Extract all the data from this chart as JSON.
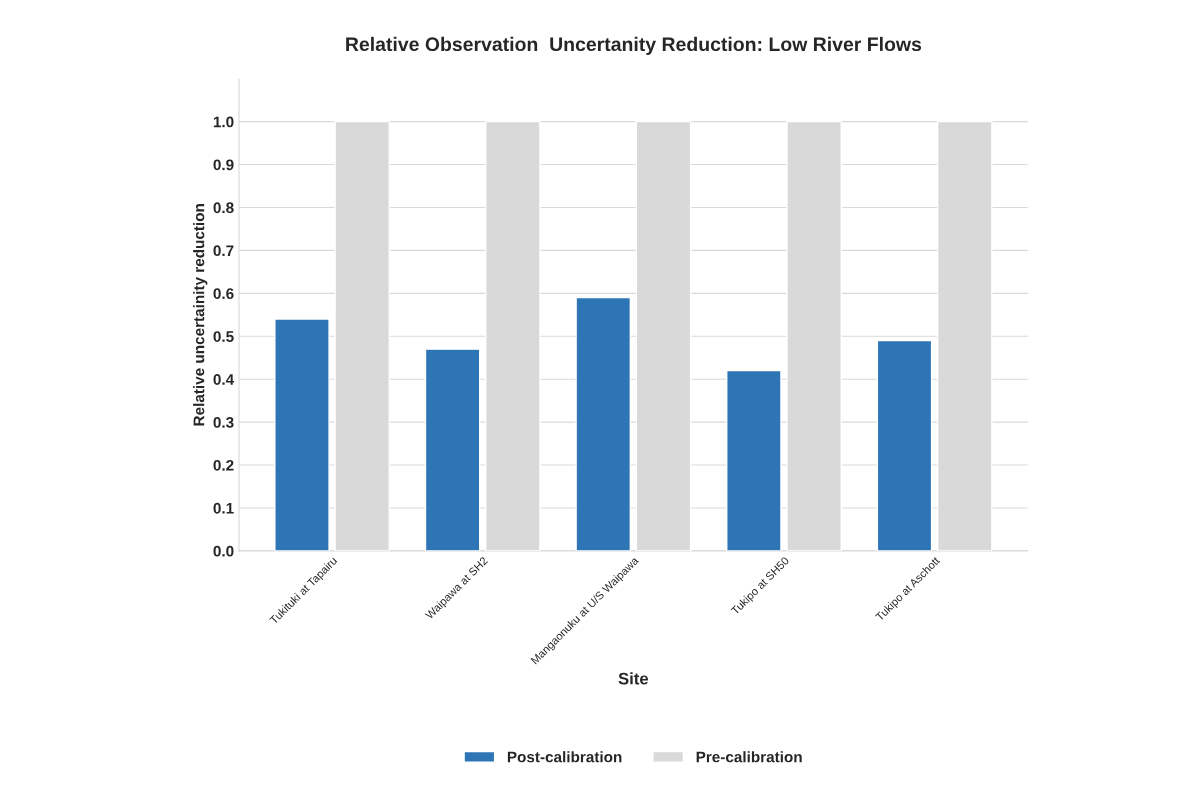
{
  "chart_data": {
    "type": "bar",
    "title": "Relative Observation  Uncertanity Reduction: Low River Flows",
    "xlabel": "Site",
    "ylabel": "Relative uncertainity reduction",
    "categories": [
      "Tukituki at Tapairu",
      "Waipawa at SH2",
      "Mangaonuku at U/S Waipawa",
      "Tukipo at SH50",
      "Tukipo at Aschott"
    ],
    "series": [
      {
        "name": "Post-calibration",
        "color": "#2e75b6",
        "values": [
          0.54,
          0.47,
          0.59,
          0.42,
          0.49
        ]
      },
      {
        "name": "Pre-calibration",
        "color": "#d9d9d9",
        "values": [
          1.0,
          1.0,
          1.0,
          1.0,
          1.0
        ]
      }
    ],
    "ylim": [
      0,
      1.1
    ],
    "yticks": [
      {
        "value": 0,
        "label": "0.0"
      },
      {
        "value": 0.1,
        "label": "0.1"
      },
      {
        "value": 0.2,
        "label": "0.2"
      },
      {
        "value": 0.3,
        "label": "0.3"
      },
      {
        "value": 0.4,
        "label": "0.4"
      },
      {
        "value": 0.5,
        "label": "0.5"
      },
      {
        "value": 0.6,
        "label": "0.6"
      },
      {
        "value": 0.7,
        "label": "0.7"
      },
      {
        "value": 0.8,
        "label": "0.8"
      },
      {
        "value": 0.9,
        "label": "0.9"
      },
      {
        "value": 1.0,
        "label": "1.0"
      }
    ],
    "grid": "y",
    "legend": "bottom"
  }
}
